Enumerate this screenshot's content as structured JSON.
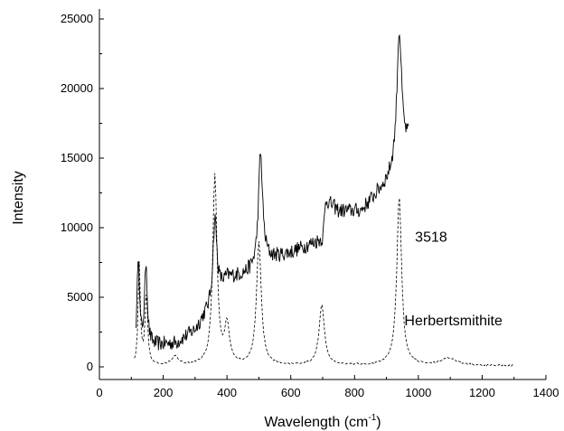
{
  "chart_data": {
    "type": "line",
    "title": "",
    "xlabel": "Wavelength (cm",
    "xlabel_sup": "-1",
    "xlabel_close": ")",
    "ylabel": "Intensity",
    "xlim": [
      0,
      1400
    ],
    "ylim": [
      -300,
      25000
    ],
    "xticks": [
      0,
      200,
      400,
      600,
      800,
      1000,
      1200,
      1400
    ],
    "yticks": [
      0,
      5000,
      10000,
      15000,
      20000,
      25000
    ],
    "grid": false,
    "annotations": [
      {
        "text": "3518",
        "x": 1040,
        "y": 9000
      },
      {
        "text": "Herbertsmithite",
        "x": 1110,
        "y": 3000
      }
    ],
    "series": [
      {
        "style": "solid",
        "color": "#000000",
        "peaks": [
          {
            "x": 122,
            "h": 6800,
            "w": 4
          },
          {
            "x": 146,
            "h": 6000,
            "w": 5
          },
          {
            "x": 362,
            "h": 6500,
            "w": 8
          },
          {
            "x": 505,
            "h": 8200,
            "w": 8
          },
          {
            "x": 940,
            "h": 9500,
            "w": 9
          }
        ],
        "baseline": [
          [
            115,
            1400
          ],
          [
            170,
            1500
          ],
          [
            240,
            1700
          ],
          [
            300,
            2600
          ],
          [
            330,
            3600
          ],
          [
            360,
            4000
          ],
          [
            380,
            5400
          ],
          [
            400,
            6300
          ],
          [
            450,
            6600
          ],
          [
            500,
            7000
          ],
          [
            520,
            7600
          ],
          [
            600,
            8200
          ],
          [
            650,
            8700
          ],
          [
            700,
            9200
          ],
          [
            710,
            12000
          ],
          [
            750,
            11200
          ],
          [
            820,
            11200
          ],
          [
            900,
            13200
          ],
          [
            930,
            14200
          ],
          [
            960,
            15600
          ],
          [
            970,
            16200
          ]
        ],
        "noise": 550,
        "x_range": [
          115,
          970
        ]
      },
      {
        "style": "dashed",
        "color": "#000000",
        "peaks": [
          {
            "x": 125,
            "h": 7200,
            "w": 4
          },
          {
            "x": 147,
            "h": 5000,
            "w": 5
          },
          {
            "x": 237,
            "h": 650,
            "w": 12
          },
          {
            "x": 362,
            "h": 13600,
            "w": 8
          },
          {
            "x": 400,
            "h": 2800,
            "w": 9
          },
          {
            "x": 500,
            "h": 8800,
            "w": 9
          },
          {
            "x": 697,
            "h": 4300,
            "w": 10
          },
          {
            "x": 940,
            "h": 12100,
            "w": 9
          },
          {
            "x": 1095,
            "h": 520,
            "w": 28
          }
        ],
        "baseline": [
          [
            110,
            80
          ],
          [
            300,
            100
          ],
          [
            600,
            110
          ],
          [
            900,
            120
          ],
          [
            1300,
            80
          ]
        ],
        "noise": 60,
        "x_range": [
          110,
          1300
        ]
      }
    ]
  }
}
